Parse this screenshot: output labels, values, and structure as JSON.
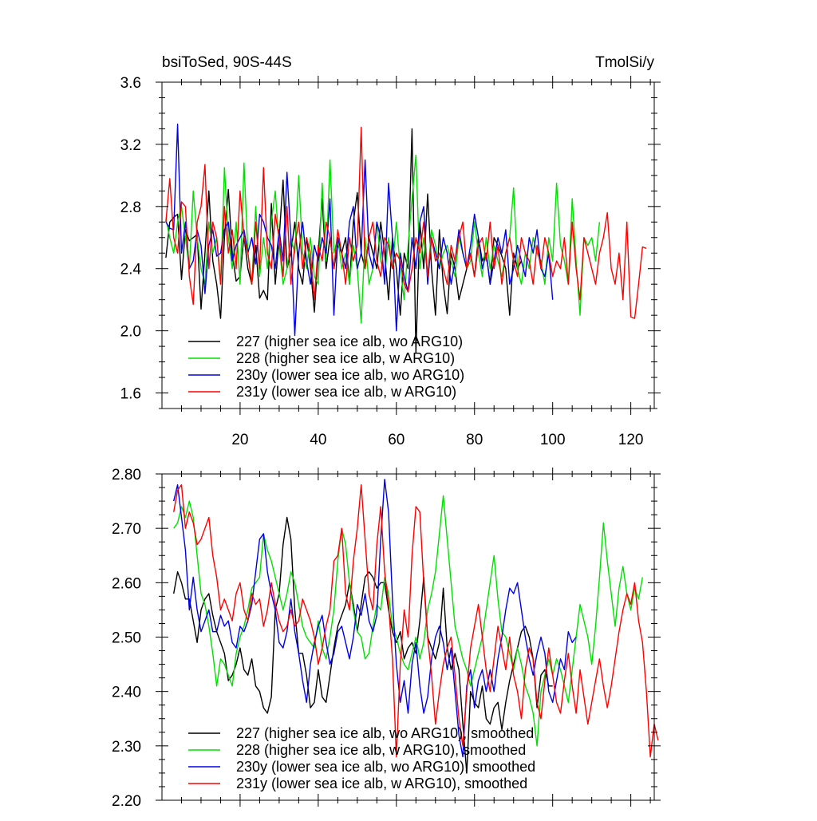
{
  "figure": {
    "title_left": "bsiToSed, 90S-44S",
    "title_right": "TmolSi/y"
  },
  "series_meta": [
    {
      "id": "227",
      "color": "#000000"
    },
    {
      "id": "228",
      "color": "#00e000"
    },
    {
      "id": "230y",
      "color": "#0000e6"
    },
    {
      "id": "231y",
      "color": "#ff0000"
    }
  ],
  "chart_data": [
    {
      "type": "line",
      "title": "bsiToSed, 90S-44S",
      "units": "TmolSi/y",
      "xlim": [
        0,
        126
      ],
      "ylim": [
        1.5,
        3.6
      ],
      "xticks": [
        20,
        40,
        60,
        80,
        100,
        120
      ],
      "xtick_labels": [
        "20",
        "40",
        "60",
        "80",
        "100",
        "120"
      ],
      "yticks": [
        1.6,
        2.0,
        2.4,
        2.8,
        3.2,
        3.6
      ],
      "ytick_labels": [
        "1.6",
        "2.0",
        "2.4",
        "2.8",
        "3.2",
        "3.6"
      ],
      "legend": [
        "227 (higher sea ice alb, wo ARG10)",
        "228 (higher sea ice alb, w ARG10)",
        "230y (lower sea ice alb, wo ARG10)",
        "231y (lower sea ice alb, w ARG10)"
      ],
      "legend_position": "bottom-left",
      "series": [
        {
          "name": "227 (higher sea ice alb, wo ARG10)",
          "x_start": 1,
          "values": [
            2.47,
            2.7,
            2.73,
            2.75,
            2.33,
            2.65,
            2.58,
            2.6,
            2.62,
            2.14,
            2.5,
            2.9,
            2.45,
            2.3,
            2.08,
            2.6,
            2.91,
            2.5,
            2.32,
            2.35,
            2.61,
            2.4,
            2.3,
            2.55,
            2.21,
            2.26,
            2.2,
            2.82,
            2.3,
            2.6,
            2.97,
            2.4,
            2.5,
            2.7,
            2.4,
            2.3,
            2.6,
            2.41,
            2.12,
            2.5,
            2.85,
            2.4,
            2.6,
            2.4,
            2.55,
            2.5,
            2.6,
            2.3,
            2.7,
            2.89,
            2.5,
            2.4,
            2.6,
            2.5,
            2.4,
            2.7,
            2.5,
            2.2,
            2.6,
            2.4,
            2.1,
            2.5,
            2.4,
            3.3,
            1.86,
            2.7,
            2.4,
            2.88,
            2.4,
            2.1,
            2.65,
            2.3,
            2.11,
            2.5,
            2.4,
            2.2,
            2.3,
            2.4,
            2.5,
            2.35,
            2.6,
            2.45,
            2.5,
            2.3,
            2.6,
            2.55,
            2.48,
            2.4,
            2.1,
            2.5,
            2.4,
            2.45
          ]
        },
        {
          "name": "228 (higher sea ice alb, w ARG10)",
          "x_start": 1,
          "values": [
            2.72,
            2.6,
            2.5,
            2.7,
            2.8,
            2.6,
            2.4,
            2.9,
            2.6,
            2.4,
            2.3,
            2.7,
            2.5,
            2.6,
            2.3,
            3.05,
            2.6,
            2.4,
            2.7,
            2.3,
            3.08,
            2.5,
            2.3,
            2.8,
            2.35,
            2.6,
            2.4,
            2.7,
            2.9,
            2.55,
            2.3,
            2.4,
            2.6,
            2.5,
            3.0,
            2.5,
            2.4,
            2.6,
            2.35,
            2.3,
            2.95,
            2.45,
            3.1,
            2.5,
            2.6,
            2.4,
            2.5,
            2.3,
            2.55,
            2.4,
            2.05,
            2.6,
            2.3,
            2.4,
            2.7,
            2.45,
            2.35,
            2.6,
            2.4,
            2.7,
            2.4,
            2.2,
            2.55,
            2.85,
            3.13,
            2.4,
            2.6,
            2.35,
            2.65,
            2.55,
            2.4,
            2.5,
            2.55,
            2.45,
            2.35,
            2.6,
            2.5,
            2.4,
            2.45,
            2.7,
            2.5,
            2.35,
            2.6,
            2.4,
            2.55,
            2.45,
            2.35,
            2.5,
            2.6,
            2.92,
            2.4,
            2.3,
            2.5,
            2.4,
            2.6,
            2.5,
            2.45,
            2.3,
            2.6,
            2.45,
            2.95,
            2.55,
            2.45,
            2.3,
            2.85,
            2.45,
            2.1,
            2.6,
            2.55,
            2.6,
            2.45,
            2.7
          ]
        },
        {
          "name": "230y (lower sea ice alb, wo ARG10)",
          "x_start": 1,
          "values": [
            2.7,
            2.66,
            2.65,
            3.33,
            2.5,
            2.7,
            2.4,
            2.45,
            2.65,
            2.55,
            2.24,
            2.55,
            2.65,
            2.48,
            2.5,
            2.65,
            2.7,
            2.45,
            2.55,
            2.6,
            2.65,
            2.5,
            2.6,
            2.43,
            2.75,
            2.7,
            2.6,
            2.55,
            2.4,
            2.65,
            2.45,
            3.02,
            2.6,
            1.97,
            2.5,
            2.7,
            2.45,
            2.3,
            2.55,
            2.45,
            2.6,
            2.5,
            2.85,
            2.1,
            2.6,
            2.5,
            2.4,
            2.7,
            2.8,
            2.4,
            2.5,
            3.1,
            2.5,
            2.4,
            2.7,
            2.6,
            2.3,
            2.95,
            2.6,
            2.0,
            2.5,
            2.35,
            2.25,
            2.6,
            2.4,
            2.7,
            2.8,
            2.3,
            2.6,
            2.5,
            2.4,
            2.6,
            2.5,
            2.3,
            2.45,
            2.65,
            2.5,
            2.4,
            2.55,
            2.75,
            2.6,
            2.4,
            2.5,
            2.3,
            2.45,
            2.6,
            2.5,
            2.65,
            2.3,
            2.4,
            2.55,
            2.45,
            2.35,
            2.6,
            2.5,
            2.65,
            2.4,
            2.35,
            2.5,
            2.2
          ]
        },
        {
          "name": "231y (lower sea ice alb, w ARG10)",
          "x_start": 1,
          "values": [
            2.7,
            2.98,
            2.6,
            2.5,
            2.83,
            2.8,
            2.35,
            2.17,
            2.7,
            2.8,
            3.07,
            2.4,
            2.7,
            2.6,
            2.3,
            2.8,
            2.5,
            2.65,
            2.4,
            2.9,
            2.6,
            2.5,
            2.3,
            2.7,
            2.4,
            3.05,
            2.5,
            2.4,
            2.75,
            2.6,
            2.35,
            2.8,
            2.3,
            2.55,
            2.7,
            2.4,
            2.6,
            2.5,
            2.2,
            2.55,
            2.45,
            2.7,
            2.6,
            2.4,
            2.65,
            2.5,
            2.3,
            2.6,
            2.45,
            2.55,
            3.31,
            2.4,
            2.6,
            2.7,
            2.45,
            2.35,
            2.6,
            2.55,
            2.4,
            2.5,
            2.45,
            2.3,
            2.25,
            2.4,
            2.6,
            2.5,
            2.7,
            2.35,
            2.6,
            2.45,
            2.5,
            2.4,
            2.3,
            2.55,
            2.45,
            2.6,
            2.7,
            2.4,
            2.5,
            2.35,
            2.55,
            2.6,
            2.45,
            2.7,
            2.4,
            2.55,
            2.3,
            2.5,
            2.6,
            2.45,
            2.35,
            2.6,
            2.5,
            2.45,
            2.3,
            2.55,
            2.4,
            2.6,
            2.5,
            2.35,
            2.45,
            2.4,
            2.6,
            2.3,
            2.7,
            2.4,
            2.2,
            2.6,
            2.5,
            2.4,
            2.3,
            2.5,
            2.6,
            2.76,
            2.4,
            2.3,
            2.5,
            2.2,
            2.7,
            2.09,
            2.08,
            2.3,
            2.54,
            2.53
          ]
        }
      ]
    },
    {
      "type": "line",
      "title": "",
      "xlim": [
        0,
        126
      ],
      "ylim": [
        2.2,
        2.8
      ],
      "xticks": [
        20,
        40,
        60,
        80,
        100,
        120
      ],
      "xtick_labels": [
        "",
        "",
        "",
        "",
        "",
        ""
      ],
      "yticks": [
        2.2,
        2.3,
        2.4,
        2.5,
        2.6,
        2.7,
        2.8
      ],
      "ytick_labels": [
        "2.20",
        "2.30",
        "2.40",
        "2.50",
        "2.60",
        "2.70",
        "2.80"
      ],
      "legend": [
        "227 (higher sea ice alb, wo ARG10), smoothed",
        "228 (higher sea ice alb, w ARG10), smoothed",
        "230y (lower sea ice alb, wo ARG10), smoothed",
        "231y (lower sea ice alb, w ARG10), smoothed"
      ],
      "legend_position": "bottom-left",
      "series": [
        {
          "name": "227 (higher sea ice alb, wo ARG10), smoothed",
          "x_start": 3,
          "values": [
            2.58,
            2.62,
            2.6,
            2.57,
            2.57,
            2.53,
            2.49,
            2.55,
            2.57,
            2.58,
            2.54,
            2.51,
            2.49,
            2.47,
            2.42,
            2.43,
            2.45,
            2.48,
            2.44,
            2.43,
            2.46,
            2.41,
            2.4,
            2.37,
            2.36,
            2.39,
            2.55,
            2.58,
            2.67,
            2.72,
            2.68,
            2.55,
            2.47,
            2.47,
            2.43,
            2.37,
            2.38,
            2.44,
            2.39,
            2.38,
            2.43,
            2.48,
            2.52,
            2.54,
            2.56,
            2.6,
            2.56,
            2.51,
            2.56,
            2.61,
            2.62,
            2.61,
            2.59,
            2.6,
            2.6,
            2.55,
            2.51,
            2.49,
            2.51,
            2.46,
            2.48,
            2.49,
            2.47,
            2.53,
            2.61,
            2.5,
            2.48,
            2.46,
            2.49,
            2.59,
            2.48,
            2.44,
            2.47,
            2.44,
            2.34,
            2.25,
            2.4,
            2.38,
            2.37,
            2.41,
            2.35,
            2.34,
            2.37,
            2.38,
            2.33,
            2.38,
            2.42,
            2.45,
            2.48,
            2.51,
            2.52,
            2.5,
            2.46,
            2.37,
            2.43,
            2.44,
            2.41,
            2.41
          ]
        },
        {
          "name": "228 (higher sea ice alb, w ARG10), smoothed",
          "x_start": 3,
          "values": [
            2.7,
            2.71,
            2.74,
            2.72,
            2.75,
            2.72,
            2.65,
            2.58,
            2.56,
            2.52,
            2.47,
            2.41,
            2.46,
            2.45,
            2.43,
            2.41,
            2.47,
            2.5,
            2.52,
            2.55,
            2.59,
            2.6,
            2.61,
            2.69,
            2.66,
            2.64,
            2.61,
            2.58,
            2.55,
            2.58,
            2.62,
            2.6,
            2.56,
            2.52,
            2.5,
            2.49,
            2.48,
            2.53,
            2.48,
            2.46,
            2.5,
            2.55,
            2.64,
            2.7,
            2.67,
            2.6,
            2.55,
            2.51,
            2.5,
            2.46,
            2.47,
            2.52,
            2.56,
            2.55,
            2.61,
            2.58,
            2.52,
            2.5,
            2.47,
            2.45,
            2.44,
            2.47,
            2.5,
            2.46,
            2.49,
            2.55,
            2.58,
            2.62,
            2.69,
            2.76,
            2.68,
            2.6,
            2.52,
            2.49,
            2.46,
            2.44,
            2.41,
            2.44,
            2.47,
            2.5,
            2.55,
            2.6,
            2.65,
            2.57,
            2.51,
            2.5,
            2.47,
            2.44,
            2.48,
            2.45,
            2.41,
            2.39,
            2.36,
            2.3,
            2.4,
            2.43,
            2.46,
            2.43,
            2.46,
            2.44,
            2.41,
            2.38,
            2.44,
            2.5,
            2.56,
            2.53,
            2.5,
            2.45,
            2.52,
            2.61,
            2.71,
            2.64,
            2.58,
            2.52,
            2.59,
            2.63,
            2.58,
            2.55,
            2.59,
            2.57,
            2.61
          ]
        },
        {
          "name": "230y (lower sea ice alb, wo ARG10), smoothed",
          "x_start": 3,
          "values": [
            2.75,
            2.78,
            2.72,
            2.66,
            2.55,
            2.61,
            2.55,
            2.51,
            2.53,
            2.55,
            2.51,
            2.51,
            2.54,
            2.52,
            2.53,
            2.49,
            2.48,
            2.52,
            2.51,
            2.53,
            2.56,
            2.62,
            2.68,
            2.69,
            2.62,
            2.58,
            2.55,
            2.49,
            2.48,
            2.51,
            2.57,
            2.51,
            2.47,
            2.42,
            2.38,
            2.45,
            2.49,
            2.52,
            2.54,
            2.49,
            2.45,
            2.47,
            2.51,
            2.52,
            2.49,
            2.46,
            2.5,
            2.56,
            2.54,
            2.58,
            2.53,
            2.51,
            2.54,
            2.68,
            2.79,
            2.73,
            2.57,
            2.45,
            2.38,
            2.42,
            2.36,
            2.45,
            2.49,
            2.41,
            2.36,
            2.39,
            2.46,
            2.5,
            2.52,
            2.49,
            2.44,
            2.48,
            2.4,
            2.32,
            2.28,
            2.41,
            2.44,
            2.37,
            2.42,
            2.44,
            2.4,
            2.44,
            2.4,
            2.46,
            2.5,
            2.55,
            2.59,
            2.58,
            2.6,
            2.55,
            2.5,
            2.46,
            2.43,
            2.47,
            2.5,
            2.47,
            2.4,
            2.38,
            2.42,
            2.46,
            2.44,
            2.51,
            2.49,
            2.5
          ]
        },
        {
          "name": "231y (lower sea ice alb, w ARG10), smoothed",
          "x_start": 3,
          "values": [
            2.73,
            2.77,
            2.78,
            2.7,
            2.73,
            2.71,
            2.67,
            2.68,
            2.7,
            2.72,
            2.65,
            2.61,
            2.55,
            2.57,
            2.55,
            2.53,
            2.58,
            2.6,
            2.55,
            2.53,
            2.58,
            2.56,
            2.57,
            2.52,
            2.55,
            2.6,
            2.56,
            2.53,
            2.51,
            2.52,
            2.55,
            2.52,
            2.53,
            2.57,
            2.55,
            2.53,
            2.5,
            2.45,
            2.48,
            2.52,
            2.55,
            2.64,
            2.65,
            2.7,
            2.58,
            2.55,
            2.64,
            2.7,
            2.78,
            2.68,
            2.58,
            2.55,
            2.67,
            2.74,
            2.62,
            2.56,
            2.46,
            2.28,
            2.45,
            2.55,
            2.5,
            2.65,
            2.74,
            2.73,
            2.6,
            2.5,
            2.43,
            2.34,
            2.4,
            2.45,
            2.48,
            2.5,
            2.43,
            2.35,
            2.3,
            2.4,
            2.48,
            2.52,
            2.56,
            2.5,
            2.44,
            2.4,
            2.46,
            2.52,
            2.48,
            2.44,
            2.5,
            2.43,
            2.4,
            2.35,
            2.44,
            2.48,
            2.46,
            2.38,
            2.35,
            2.42,
            2.48,
            2.43,
            2.38,
            2.36,
            2.42,
            2.47,
            2.41,
            2.36,
            2.44,
            2.39,
            2.34,
            2.38,
            2.42,
            2.46,
            2.41,
            2.37,
            2.41,
            2.46,
            2.51,
            2.55,
            2.58,
            2.56,
            2.6,
            2.53,
            2.49,
            2.4,
            2.28,
            2.34,
            2.31
          ]
        }
      ]
    }
  ]
}
